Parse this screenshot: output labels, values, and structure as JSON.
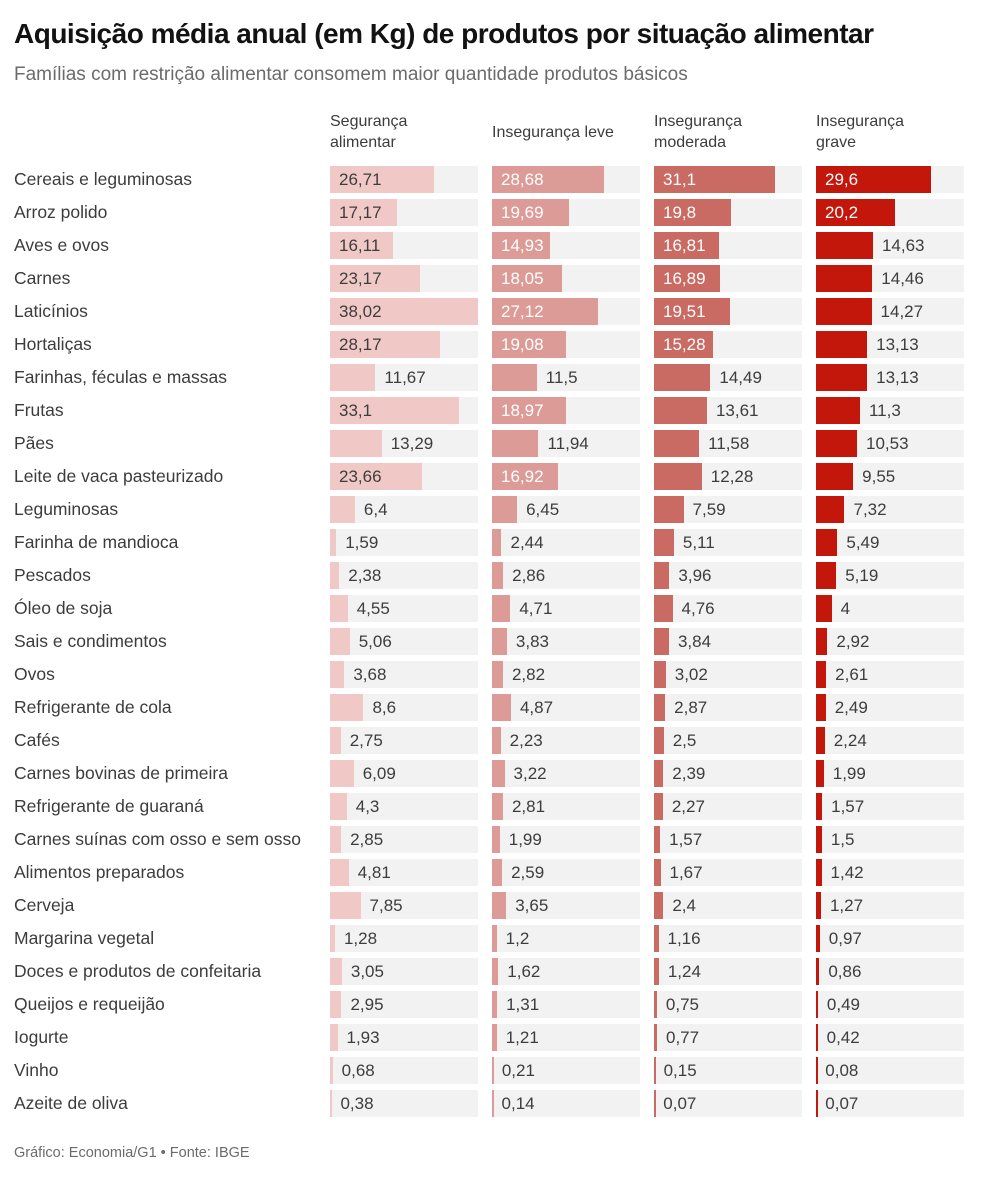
{
  "title": "Aquisição média anual (em Kg) de produtos por situação alimentar",
  "subtitle": "Famílias com restrição alimentar consomem maior quantidade produtos básicos",
  "footer": "Gráfico: Economia/G1 • Fonte: IBGE",
  "chart_data": {
    "type": "bar",
    "orientation": "horizontal",
    "unit": "Kg",
    "axis_max": 38.02,
    "grid": false,
    "legend_position": "column-headers-top",
    "track_color": "#f2f2f2",
    "value_decimal_separator": ",",
    "categories": [
      "Cereais e leguminosas",
      "Arroz polido",
      "Aves e ovos",
      "Carnes",
      "Laticínios",
      "Hortaliças",
      "Farinhas, féculas e massas",
      "Frutas",
      "Pães",
      "Leite de vaca pasteurizado",
      "Leguminosas",
      "Farinha de mandioca",
      "Pescados",
      "Óleo de soja",
      "Sais e condimentos",
      "Ovos",
      "Refrigerante de cola",
      "Cafés",
      "Carnes bovinas de primeira",
      "Refrigerante de guaraná",
      "Carnes suínas com osso e sem osso",
      "Alimentos preparados",
      "Cerveja",
      "Margarina vegetal",
      "Doces e produtos de confeitaria",
      "Queijos e requeijão",
      "Iogurte",
      "Vinho",
      "Azeite de oliva"
    ],
    "series": [
      {
        "name": "Segurança alimentar",
        "color": "#f0c9c6",
        "label_color_inside": "#3d3d3d",
        "values": [
          26.71,
          17.17,
          16.11,
          23.17,
          38.02,
          28.17,
          11.67,
          33.1,
          13.29,
          23.66,
          6.4,
          1.59,
          2.38,
          4.55,
          5.06,
          3.68,
          8.6,
          2.75,
          6.09,
          4.3,
          2.85,
          4.81,
          7.85,
          1.28,
          3.05,
          2.95,
          1.93,
          0.68,
          0.38
        ]
      },
      {
        "name": "Insegurança leve",
        "color": "#dd9b97",
        "label_color_inside": "#ffffff",
        "values": [
          28.68,
          19.69,
          14.93,
          18.05,
          27.12,
          19.08,
          11.5,
          18.97,
          11.94,
          16.92,
          6.45,
          2.44,
          2.86,
          4.71,
          3.83,
          2.82,
          4.87,
          2.23,
          3.22,
          2.81,
          1.99,
          2.59,
          3.65,
          1.2,
          1.62,
          1.31,
          1.21,
          0.21,
          0.14
        ]
      },
      {
        "name": "Insegurança moderada",
        "color": "#c96a63",
        "label_color_inside": "#ffffff",
        "values": [
          31.1,
          19.8,
          16.81,
          16.89,
          19.51,
          15.28,
          14.49,
          13.61,
          11.58,
          12.28,
          7.59,
          5.11,
          3.96,
          4.76,
          3.84,
          3.02,
          2.87,
          2.5,
          2.39,
          2.27,
          1.57,
          1.67,
          2.4,
          1.16,
          1.24,
          0.75,
          0.77,
          0.15,
          0.07
        ]
      },
      {
        "name": "Insegurança grave",
        "color": "#c4170c",
        "label_color_inside": "#ffffff",
        "values": [
          29.6,
          20.2,
          14.63,
          14.46,
          14.27,
          13.13,
          13.13,
          11.3,
          10.53,
          9.55,
          7.32,
          5.49,
          5.19,
          4,
          2.92,
          2.61,
          2.49,
          2.24,
          1.99,
          1.57,
          1.5,
          1.42,
          1.27,
          0.97,
          0.86,
          0.49,
          0.42,
          0.08,
          0.07
        ]
      }
    ]
  }
}
